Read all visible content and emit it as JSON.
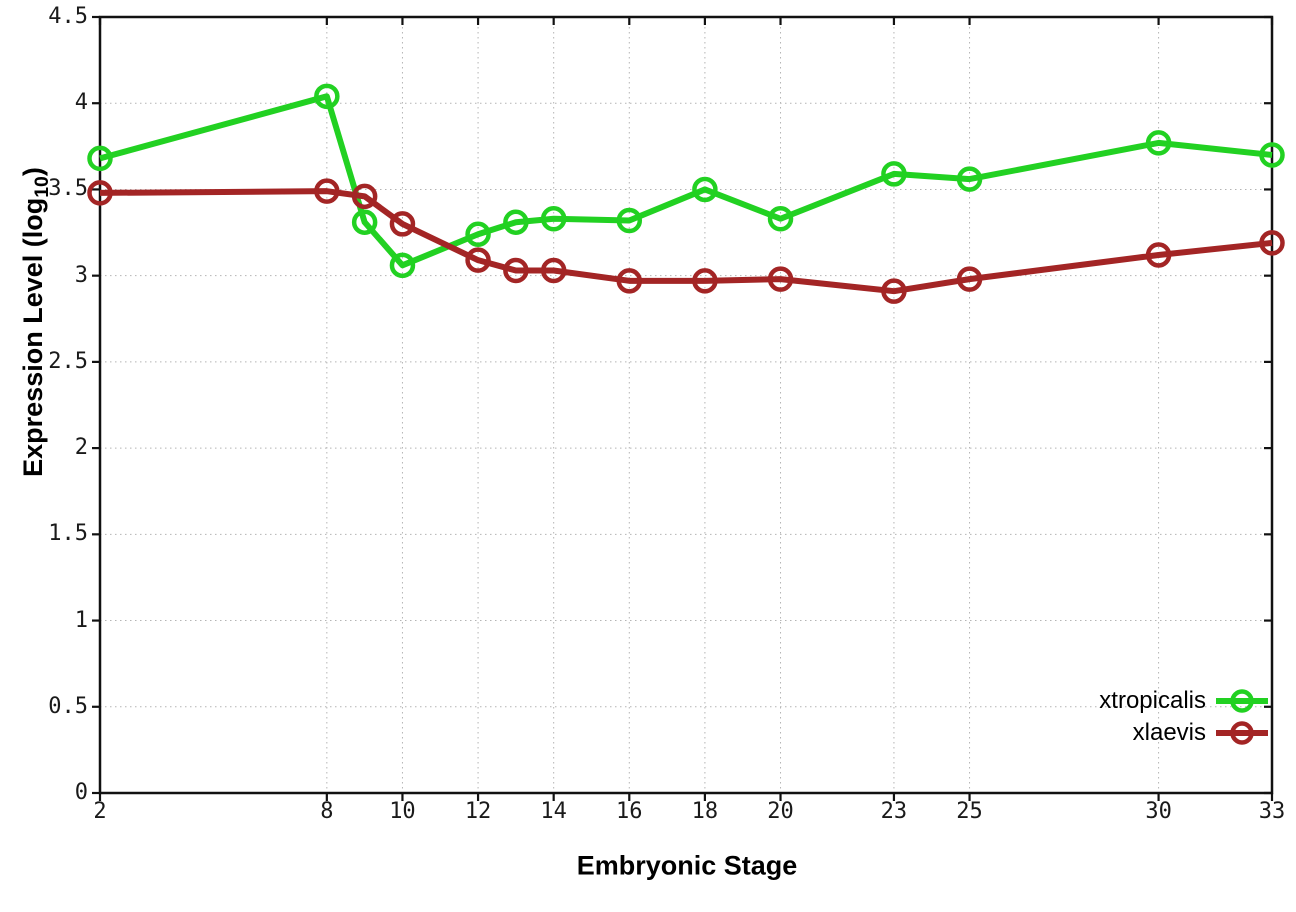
{
  "chart_data": {
    "type": "line",
    "title": "",
    "xlabel": "Embryonic Stage",
    "ylabel": "Expression Level (log10)",
    "ylabel_parts": {
      "pre": "Expression Level (log",
      "sub": "10",
      "post": ")"
    },
    "xlim": [
      2,
      33
    ],
    "ylim": [
      0,
      4.5
    ],
    "grid": true,
    "legend_position": "bottom-right inside",
    "x_ticks": [
      2,
      8,
      10,
      12,
      14,
      16,
      18,
      20,
      23,
      25,
      30,
      33
    ],
    "y_ticks": [
      0,
      0.5,
      1,
      1.5,
      2,
      2.5,
      3,
      3.5,
      4,
      4.5
    ],
    "y_tick_labels": [
      "0",
      "0.5",
      "1",
      "1.5",
      "2",
      "2.5",
      "3",
      "3.5",
      "4",
      "4.5"
    ],
    "x": [
      2,
      8,
      9,
      10,
      12,
      13,
      14,
      16,
      18,
      20,
      23,
      25,
      30,
      33
    ],
    "series": [
      {
        "name": "xtropicalis",
        "color": "#22d122",
        "marker": "open-circle",
        "values": [
          3.68,
          4.04,
          3.31,
          3.06,
          3.24,
          3.31,
          3.33,
          3.32,
          3.5,
          3.33,
          3.59,
          3.56,
          3.77,
          3.7
        ]
      },
      {
        "name": "xlaevis",
        "color": "#a32525",
        "marker": "open-circle",
        "values": [
          3.48,
          3.49,
          3.46,
          3.3,
          3.09,
          3.03,
          3.03,
          2.97,
          2.97,
          2.98,
          2.91,
          2.98,
          3.12,
          3.19
        ]
      }
    ]
  }
}
